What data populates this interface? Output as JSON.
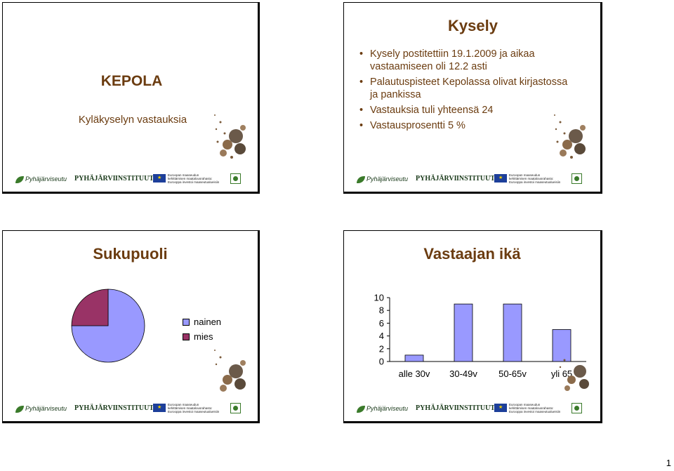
{
  "slides": {
    "kepola": {
      "title": "KEPOLA",
      "subtitle": "Kyläkyselyn vastauksia"
    },
    "kysely": {
      "title": "Kysely",
      "bullets": [
        "Kysely postitettiin 19.1.2009 ja aikaa vastaamiseen oli 12.2 asti",
        "Palautuspisteet Kepolassa olivat kirjastossa ja pankissa",
        "Vastauksia tuli yhteensä 24",
        "Vastausprosentti 5 %"
      ]
    },
    "sukupuoli": {
      "title": "Sukupuoli"
    },
    "ika": {
      "title": "Vastaajan ikä"
    }
  },
  "footer": {
    "logo1": "Pyhäjärviseutu",
    "logo2": "PYHÄJÄRVI",
    "logo3": "INSTITUUTTI",
    "eu_line1": "Euroopan maaseudun",
    "eu_line2": "kehittämisen maatalousrahasto:",
    "eu_line3": "Eurooppa investoi maaseutualueisiin"
  },
  "page_number": "1",
  "colors": {
    "brown": "#6b3c10",
    "lavender": "#9999ff",
    "maroon": "#993366"
  },
  "chart_data": [
    {
      "type": "pie",
      "title": "Sukupuoli",
      "categories": [
        "nainen",
        "mies"
      ],
      "values": [
        18,
        6
      ],
      "colors": [
        "#9999ff",
        "#993366"
      ],
      "legend": "right"
    },
    {
      "type": "bar",
      "title": "Vastaajan ikä",
      "categories": [
        "alle 30v",
        "30-49v",
        "50-65v",
        "yli 65"
      ],
      "values": [
        1,
        9,
        9,
        5
      ],
      "ylim": [
        0,
        10
      ],
      "yticks": [
        0,
        2,
        4,
        6,
        8,
        10
      ],
      "color": "#9999ff",
      "grid": false
    }
  ]
}
